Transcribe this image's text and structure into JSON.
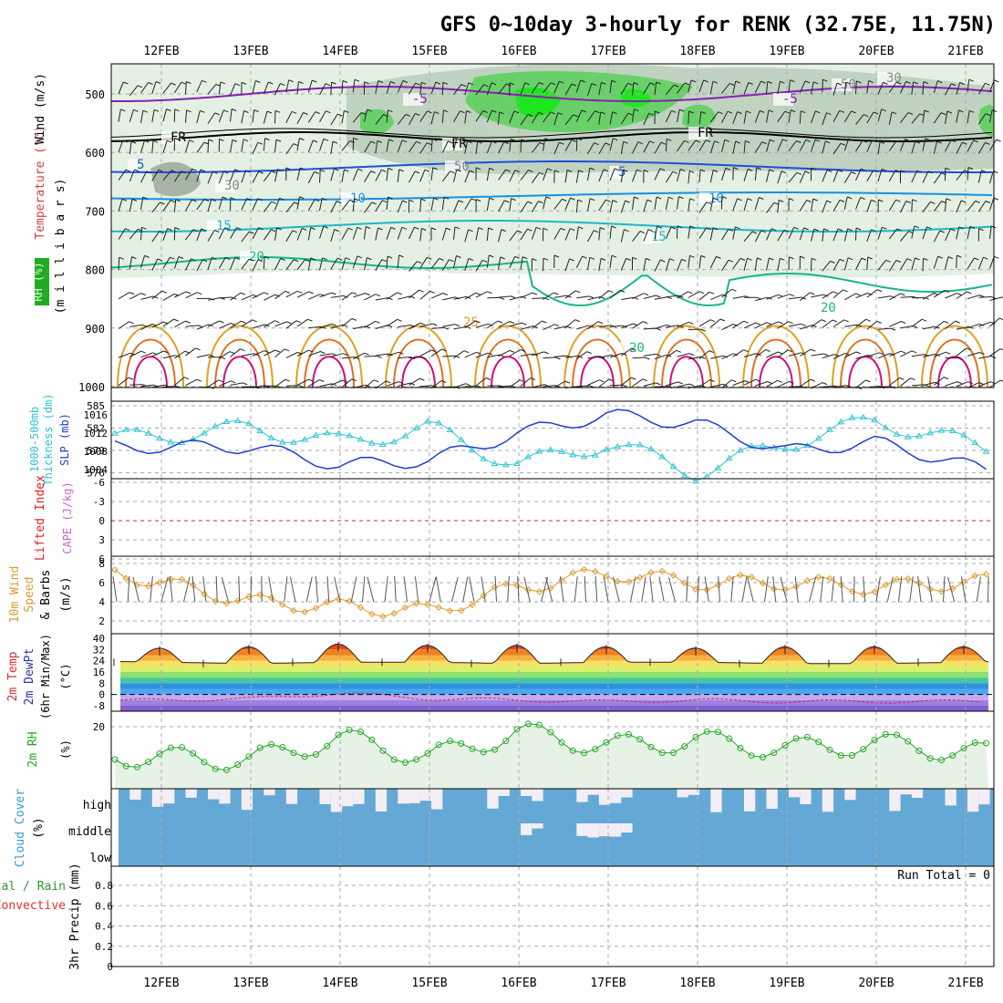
{
  "header": {
    "title": "GFS 0~10day 3-hourly for RENK (32.75E, 11.75N)"
  },
  "dates": [
    "12FEB",
    "13FEB",
    "14FEB",
    "15FEB",
    "16FEB",
    "17FEB",
    "18FEB",
    "19FEB",
    "20FEB",
    "21FEB"
  ],
  "colors": {
    "frame": "#000000",
    "grid": "#aaaaaa",
    "rh_light": "#e3f0e3",
    "rh_mid": "#c0d2c0",
    "rh_dark": "#a6b4a6",
    "rh_green": "#69d069",
    "rh_bright": "#1ee61e",
    "thickness": "#31c3d3",
    "slp": "#1f3fcf",
    "wind10": "#e09a30",
    "cloud": "#64a9d6",
    "cloud_clear": "#f3eef5",
    "rh2m": "#27a827",
    "rh2m_fill": "#e6f2e6",
    "li": "#e02020",
    "cape": "#cc66cc"
  },
  "panels": {
    "upper": {
      "axis_labels": [
        "Wind (m/s)",
        "Temperature (°C)",
        "RH (%)",
        "(m i l l i b a r s)"
      ],
      "rh_legend_box": "RH (%)",
      "y_ticks": [
        "500",
        "600",
        "700",
        "800",
        "900",
        "1000"
      ],
      "contour_labels": [
        "-5",
        "FR",
        "5",
        "10",
        "15",
        "20",
        "25",
        "50",
        "30"
      ]
    },
    "thickness": {
      "axis_labels": [
        "1000-500mb",
        "Thickness (dm)",
        "SLP (mb)"
      ],
      "left_ticks": [
        "585",
        "582",
        "579",
        "576"
      ],
      "right_ticks": [
        "1016",
        "1012",
        "1008",
        "1004"
      ]
    },
    "convective": {
      "axis_labels": [
        "Lifted Index",
        "CAPE (J/kg)"
      ],
      "ticks": [
        "-6",
        "-3",
        "0",
        "3",
        "6"
      ]
    },
    "wind10": {
      "axis_labels": [
        "10m Wind",
        "Speed",
        "& Barbs",
        "(m/s)"
      ],
      "ticks": [
        "8",
        "6",
        "4",
        "2"
      ]
    },
    "temp2m": {
      "axis_labels": [
        "2m Temp",
        "2m DewPt",
        "(6hr Min/Max)",
        "(°C)"
      ],
      "ticks": [
        "40",
        "32",
        "24",
        "16",
        "8",
        "0",
        "-8"
      ]
    },
    "rh2m": {
      "axis_labels": [
        "2m RH",
        "(%)"
      ],
      "ticks": [
        "20"
      ]
    },
    "cloud": {
      "axis_labels": [
        "Cloud Cover",
        "(%)"
      ],
      "levels": [
        "high",
        "middle",
        "low"
      ]
    },
    "precip": {
      "axis_labels": [
        "Total / Rain",
        "Convective",
        "3hr Precip (mm)"
      ],
      "ticks": [
        "0.8",
        "0.6",
        "0.4",
        "0.2",
        "0"
      ],
      "run_total": "Run Total = 0"
    }
  },
  "chart_data": [
    {
      "type": "line",
      "title": "1000-500mb Thickness / SLP",
      "x": [
        "12FEB",
        "13FEB",
        "14FEB",
        "15FEB",
        "16FEB",
        "17FEB",
        "18FEB",
        "19FEB",
        "20FEB",
        "21FEB"
      ],
      "series": [
        {
          "name": "1000-500mb Thickness (dm)",
          "values": [
            581,
            582,
            580,
            582,
            577,
            580,
            576,
            580,
            583,
            580
          ]
        },
        {
          "name": "SLP (mb)",
          "values": [
            1009,
            1009,
            1005,
            1006,
            1012,
            1016,
            1014,
            1008,
            1010,
            1005
          ]
        }
      ]
    },
    {
      "type": "line",
      "title": "10m Wind Speed",
      "ylabel": "(m/s)",
      "ylim": [
        0,
        8
      ],
      "x": [
        "12FEB",
        "13FEB",
        "14FEB",
        "15FEB",
        "16FEB",
        "17FEB",
        "18FEB",
        "19FEB",
        "20FEB",
        "21FEB"
      ],
      "series": [
        {
          "name": "10m Wind Speed",
          "values": [
            6,
            4,
            3.5,
            3,
            5.5,
            7,
            6,
            6,
            5.5,
            6
          ]
        }
      ]
    },
    {
      "type": "area",
      "title": "2m Temp",
      "ylabel": "(°C)",
      "ylim": [
        -8,
        40
      ],
      "x": [
        "12FEB",
        "13FEB",
        "14FEB",
        "15FEB",
        "16FEB",
        "17FEB",
        "18FEB",
        "19FEB",
        "20FEB",
        "21FEB"
      ],
      "series": [
        {
          "name": "2m Temp max",
          "values": [
            33,
            34,
            36,
            35,
            35,
            34,
            33,
            34,
            34,
            34
          ]
        },
        {
          "name": "2m Temp min",
          "values": [
            23,
            22,
            23,
            23,
            22,
            23,
            23,
            22,
            22,
            23
          ]
        },
        {
          "name": "2m DewPt",
          "values": [
            -4,
            -3,
            1,
            -3,
            -4,
            -5,
            -4,
            -5,
            -5,
            -5
          ]
        }
      ]
    },
    {
      "type": "line",
      "title": "2m RH",
      "ylabel": "(%)",
      "x": [
        "12FEB",
        "13FEB",
        "14FEB",
        "15FEB",
        "16FEB",
        "17FEB",
        "18FEB",
        "19FEB",
        "20FEB",
        "21FEB"
      ],
      "series": [
        {
          "name": "2m RH",
          "values": [
            9,
            8,
            16,
            9,
            18,
            13,
            15,
            12,
            14,
            11
          ]
        }
      ]
    },
    {
      "type": "bar",
      "title": "3hr Precip",
      "ylabel": "3hr Precip (mm)",
      "ylim": [
        0,
        1
      ],
      "x": [
        "12FEB",
        "13FEB",
        "14FEB",
        "15FEB",
        "16FEB",
        "17FEB",
        "18FEB",
        "19FEB",
        "20FEB",
        "21FEB"
      ],
      "series": [
        {
          "name": "Total / Rain",
          "values": [
            0,
            0,
            0,
            0,
            0,
            0,
            0,
            0,
            0,
            0
          ]
        }
      ]
    }
  ]
}
